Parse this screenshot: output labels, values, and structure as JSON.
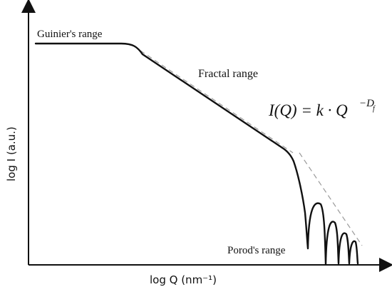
{
  "chart_data": {
    "type": "line",
    "title": "",
    "xlabel": "log Q (nm⁻¹)",
    "ylabel": "log I (a.u.)",
    "grid": false,
    "legend": "none",
    "annotations": {
      "guinier": "Guinier's range",
      "fractal": "Fractal range",
      "porod": "Porod's range"
    },
    "equation": {
      "lhs": "I(Q) = k · Q",
      "exponent": "−D",
      "subscript": "f"
    },
    "colors": {
      "curve": "#111111",
      "asymptote": "#9a9a9a",
      "axis": "#111111"
    }
  }
}
